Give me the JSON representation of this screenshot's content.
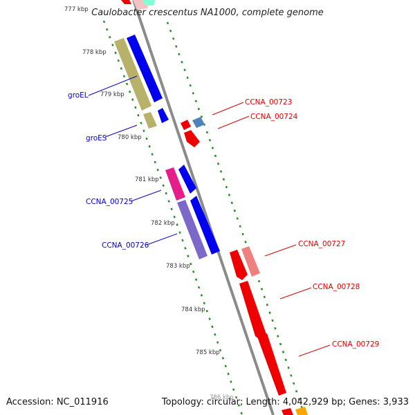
{
  "title": "Caulobacter crescentus NA1000, complete genome",
  "footer": {
    "accession": "Accession: NC_011916",
    "summary": "Topology: circular; Length: 4,042,929 bp; Genes: 3,933"
  },
  "ticks": [
    "777 kbp",
    "778 kbp",
    "779 kbp",
    "780 kbp",
    "781 kbp",
    "782 kbp",
    "783 kbp",
    "784 kbp",
    "785 kbp",
    "786 kbp"
  ],
  "genes": [
    {
      "name": "groEL",
      "strand": "left",
      "color": "#0000ee"
    },
    {
      "name": "groES",
      "strand": "left",
      "color": "#0000ee"
    },
    {
      "name": "CCNA_00723",
      "strand": "right",
      "color": "#ee0000"
    },
    {
      "name": "CCNA_00724",
      "strand": "right",
      "color": "#ee0000"
    },
    {
      "name": "CCNA_00725",
      "strand": "left",
      "color": "#0000ee"
    },
    {
      "name": "CCNA_00726",
      "strand": "left",
      "color": "#0000ee"
    },
    {
      "name": "CCNA_00727",
      "strand": "right",
      "color": "#ee0000"
    },
    {
      "name": "CCNA_00728",
      "strand": "right",
      "color": "#ee0000"
    },
    {
      "name": "CCNA_00729",
      "strand": "right",
      "color": "#ee0000"
    }
  ],
  "colors": {
    "backbone": "#888888",
    "forward_cds": "#0000ee",
    "reverse_cds": "#ee0000",
    "dot_ring": "#2e8b2e",
    "label_left": "#0000cc",
    "label_right": "#dd0000"
  }
}
